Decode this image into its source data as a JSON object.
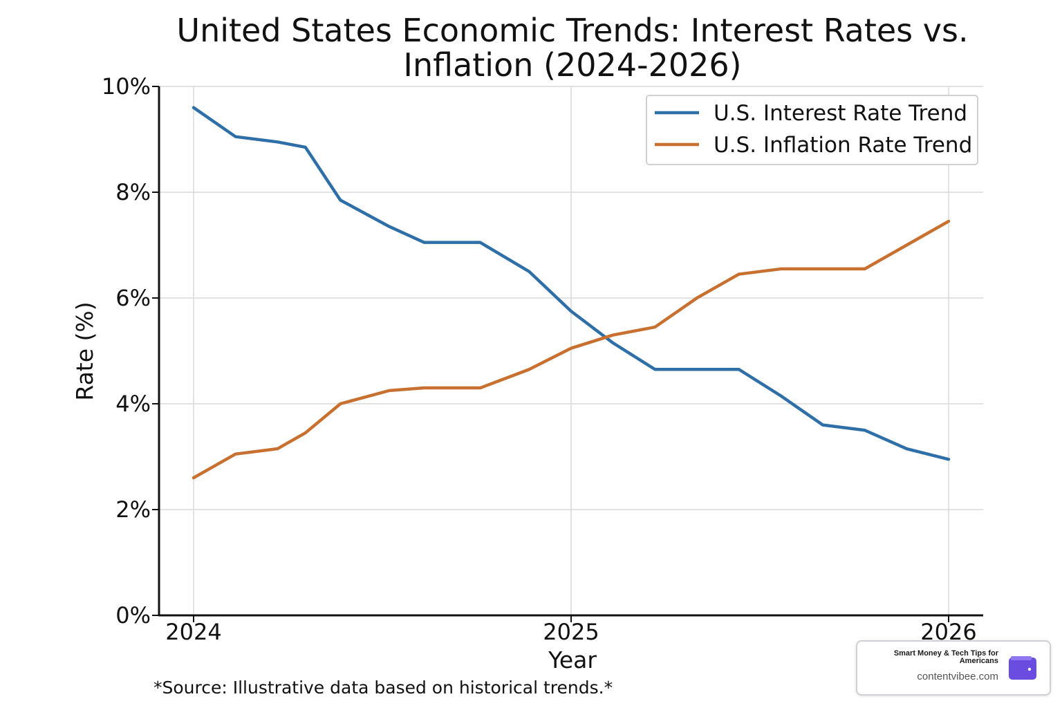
{
  "chart_data": {
    "type": "line",
    "title_line1": "United States Economic Trends: Interest Rates vs.",
    "title_line2": "Inflation (2024-2026)",
    "xlabel": "Year",
    "ylabel": "Rate (%)",
    "xlim": [
      2024,
      2026
    ],
    "ylim": [
      0,
      10
    ],
    "x_ticks": [
      "2024",
      "2025",
      "2026"
    ],
    "y_ticks": [
      "0%",
      "2%",
      "4%",
      "6%",
      "8%",
      "10%"
    ],
    "grid": true,
    "legend_position": "top-right",
    "x": [
      2024.0,
      2024.1111,
      2024.2222,
      2024.2963,
      2024.3889,
      2024.5185,
      2024.6111,
      2024.7593,
      2024.8889,
      2025.0,
      2025.1111,
      2025.2222,
      2025.3333,
      2025.4444,
      2025.5556,
      2025.6667,
      2025.7778,
      2025.8889,
      2026.0
    ],
    "series": [
      {
        "name": "U.S. Interest Rate Trend",
        "color": "#2e6fa7",
        "values": [
          9.6,
          9.05,
          8.95,
          8.85,
          7.85,
          7.35,
          7.05,
          7.05,
          6.5,
          5.75,
          5.15,
          4.65,
          4.65,
          4.65,
          4.15,
          3.6,
          3.5,
          3.15,
          2.95
        ]
      },
      {
        "name": "U.S. Inflation Rate Trend",
        "color": "#c8702f",
        "values": [
          2.6,
          3.05,
          3.15,
          3.45,
          4.0,
          4.25,
          4.3,
          4.3,
          4.65,
          5.05,
          5.3,
          5.45,
          6.0,
          6.45,
          6.55,
          6.55,
          6.55,
          7.0,
          7.45
        ]
      }
    ],
    "source_note": "*Source: Illustrative data based on historical trends.*"
  },
  "badge": {
    "tagline": "Smart Money & Tech Tips for Americans",
    "domain": "contentvibee.com",
    "icon": "wallet-icon",
    "icon_color": "#6a4de0"
  }
}
